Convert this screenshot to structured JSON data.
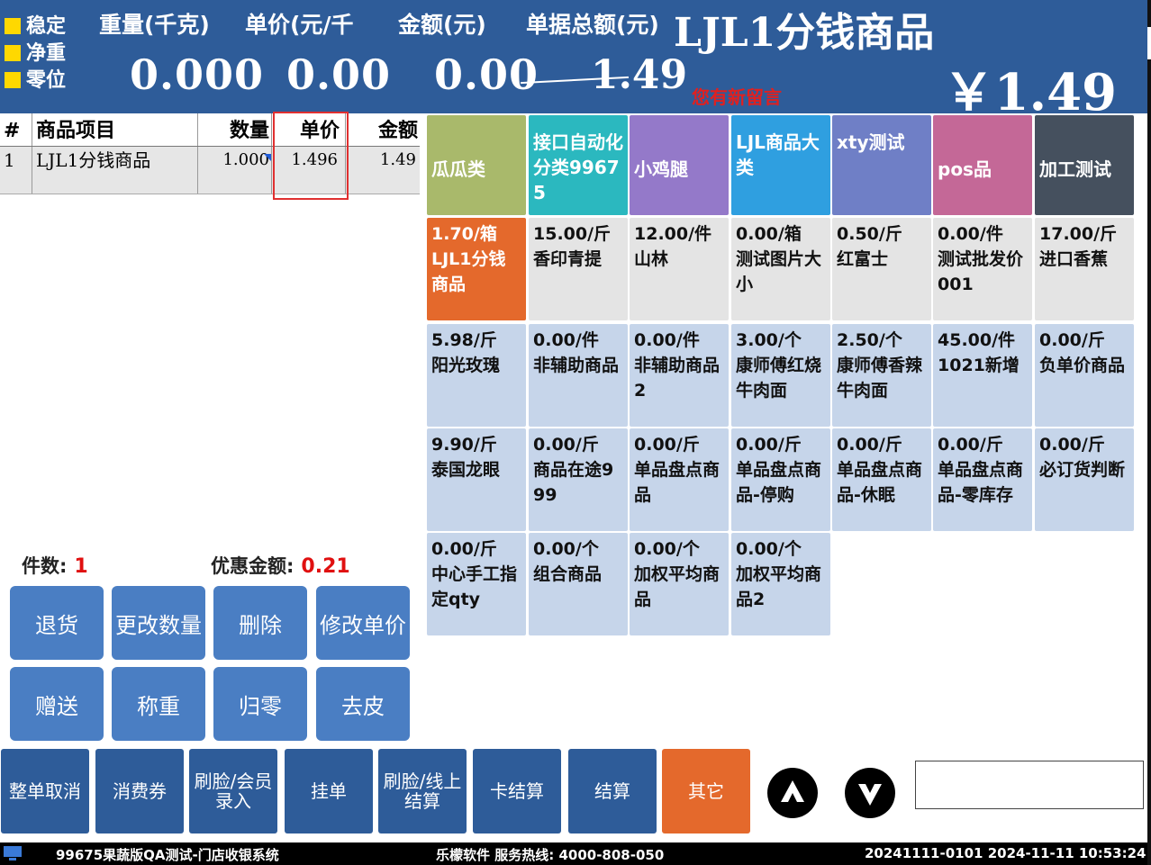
{
  "header": {
    "status": [
      "稳定",
      "净重",
      "零位"
    ],
    "labels": {
      "weight": "重量(千克)",
      "unit_price": "单价(元/千",
      "amount": "金额(元)",
      "doc_total": "单据总额(元)"
    },
    "product_title": "LJL1分钱商品",
    "weight_value": "0.000",
    "price_value": "0.00",
    "amount_value": "0.00",
    "doc_total_value": "1.49",
    "message": "您有新留言",
    "big_total": "￥1.49"
  },
  "table": {
    "headers": {
      "index": "#",
      "item": "商品项目",
      "qty": "数量",
      "price": "单价",
      "amount": "金额"
    },
    "rows": [
      {
        "index": "1",
        "item": "LJL1分钱商品",
        "qty": "1.000",
        "price": "1.496",
        "amount": "1.49"
      }
    ]
  },
  "summary": {
    "count_label": "件数:",
    "count_value": "1",
    "discount_label": "优惠金额:",
    "discount_value": "0.21"
  },
  "func_buttons": [
    "退货",
    "更改数量",
    "删除",
    "修改单价",
    "赠送",
    "称重",
    "归零",
    "去皮"
  ],
  "categories": [
    {
      "label": "瓜瓜类",
      "color": "#a9b96b"
    },
    {
      "label": "接口自动化分类99675",
      "color": "#2bb8bf"
    },
    {
      "label": "小鸡腿",
      "color": "#9479c9"
    },
    {
      "label": "LJL商品大类",
      "color": "#2f9fe0"
    },
    {
      "label": "xty测试",
      "color": "#6f7fc6"
    },
    {
      "label": "pos品",
      "color": "#c46897"
    },
    {
      "label": "加工测试",
      "color": "#45505e"
    }
  ],
  "products": [
    {
      "price": "1.70/箱",
      "name": "LJL1分钱商品"
    },
    {
      "price": "15.00/斤",
      "name": "香印青提"
    },
    {
      "price": "12.00/件",
      "name": "山林"
    },
    {
      "price": "0.00/箱",
      "name": "测试图片大小"
    },
    {
      "price": "0.50/斤",
      "name": "红富士"
    },
    {
      "price": "0.00/件",
      "name": "测试批发价001"
    },
    {
      "price": "17.00/斤",
      "name": "进口香蕉"
    },
    {
      "price": "5.98/斤",
      "name": "阳光玫瑰"
    },
    {
      "price": "0.00/件",
      "name": "非辅助商品"
    },
    {
      "price": "0.00/件",
      "name": "非辅助商品2"
    },
    {
      "price": "3.00/个",
      "name": "康师傅红烧牛肉面"
    },
    {
      "price": "2.50/个",
      "name": "康师傅香辣牛肉面"
    },
    {
      "price": "45.00/件",
      "name": "1021新增"
    },
    {
      "price": "0.00/斤",
      "name": "负单价商品"
    },
    {
      "price": "9.90/斤",
      "name": "泰国龙眼"
    },
    {
      "price": "0.00/斤",
      "name": "商品在途999"
    },
    {
      "price": "0.00/斤",
      "name": "单品盘点商品"
    },
    {
      "price": "0.00/斤",
      "name": "单品盘点商品-停购"
    },
    {
      "price": "0.00/斤",
      "name": "单品盘点商品-休眠"
    },
    {
      "price": "0.00/斤",
      "name": "单品盘点商品-零库存"
    },
    {
      "price": "0.00/斤",
      "name": "必订货判断"
    },
    {
      "price": "0.00/斤",
      "name": "中心手工指定qty"
    },
    {
      "price": "0.00/个",
      "name": "组合商品"
    },
    {
      "price": "0.00/个",
      "name": "加权平均商品"
    },
    {
      "price": "0.00/个",
      "name": "加权平均商品2"
    }
  ],
  "bottom_buttons": [
    "整单取消",
    "消费券",
    "刷脸/会员录入",
    "挂单",
    "刷脸/线上结算",
    "卡结算",
    "结算",
    "其它"
  ],
  "colors": {
    "header_bg": "#2e5c99",
    "selected_product": "#e4692c",
    "other_button": "#e4692c",
    "product_row1": "#e4e4e4",
    "product_row_other": "#c6d5ea"
  },
  "status_bar": {
    "system": "99675果蔬版QA测试-门店收银系统",
    "vendor": "乐檬软件   服务热线: 4000-808-050",
    "info": "20241111-0101 2024-11-11 10:53:24"
  }
}
